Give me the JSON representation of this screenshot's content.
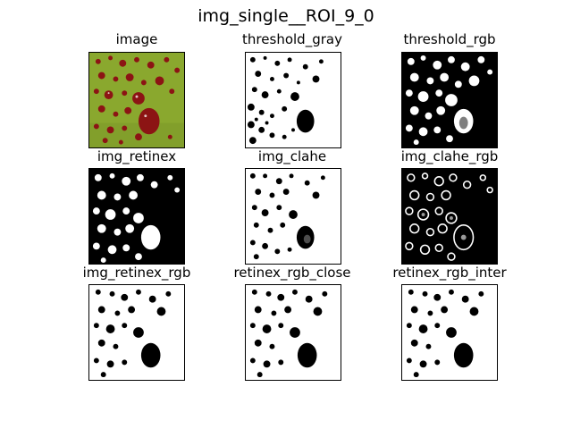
{
  "figure": {
    "title": "img_single__ROI_9_0",
    "panels": [
      {
        "title": "image"
      },
      {
        "title": "threshold_gray"
      },
      {
        "title": "threshold_rgb"
      },
      {
        "title": "img_retinex"
      },
      {
        "title": "img_clahe"
      },
      {
        "title": "img_clahe_rgb"
      },
      {
        "title": "img_retinex_rgb"
      },
      {
        "title": "retinex_rgb_close"
      },
      {
        "title": "retinex_rgb_inter"
      }
    ]
  },
  "colors": {
    "leaf_green": "#8aa82e",
    "droplet_red": "#8c1414",
    "mask_black": "#000000",
    "mask_white": "#ffffff"
  }
}
